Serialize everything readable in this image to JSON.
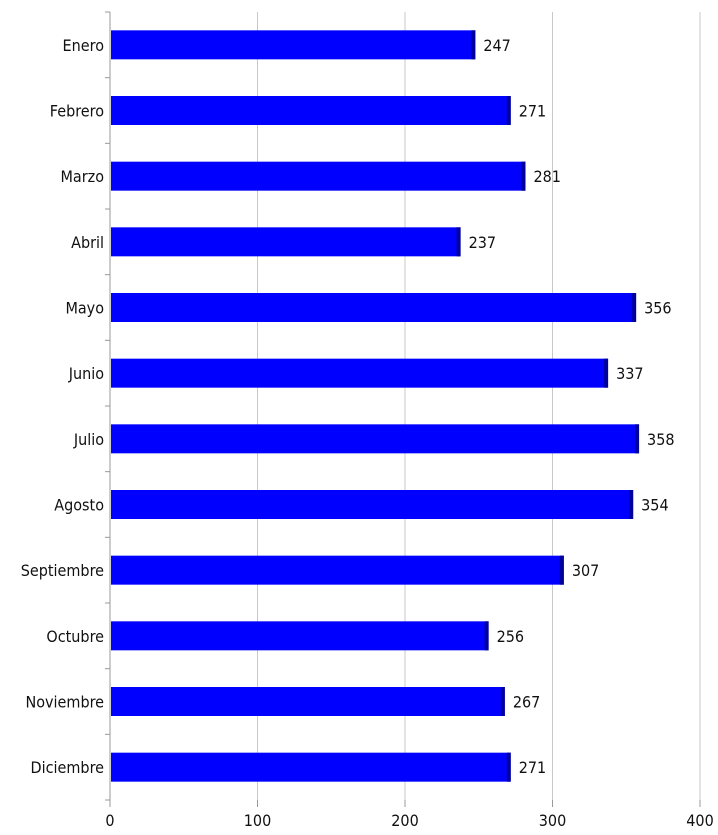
{
  "chart_data": {
    "type": "bar",
    "orientation": "horizontal",
    "categories": [
      "Enero",
      "Febrero",
      "Marzo",
      "Abril",
      "Mayo",
      "Junio",
      "Julio",
      "Agosto",
      "Septiembre",
      "Octubre",
      "Noviembre",
      "Diciembre"
    ],
    "values": [
      247,
      271,
      281,
      237,
      356,
      337,
      358,
      354,
      307,
      256,
      267,
      271
    ],
    "title": "",
    "xlabel": "",
    "ylabel": "",
    "xlim": [
      0,
      400
    ],
    "x_ticks": [
      "0",
      "100",
      "200",
      "300",
      "400"
    ],
    "grid": "vertical",
    "legend": "none",
    "data_labels": true,
    "colors": {
      "bar": "#0000ff",
      "bar_edge": "#00009c",
      "grid": "#c8c8c8",
      "axis": "#999999",
      "text": "#111111",
      "background": "#ffffff"
    }
  }
}
